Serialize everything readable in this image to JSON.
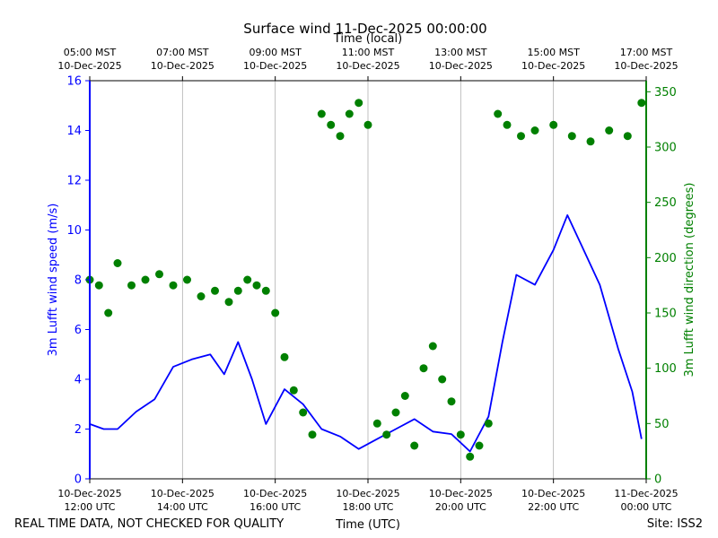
{
  "chart_data": {
    "type": "line+scatter",
    "title": "Surface wind 11-Dec-2025 00:00:00",
    "top_axis": {
      "label": "Time (local)",
      "ticks": [
        {
          "line1": "05:00 MST",
          "line2": "10-Dec-2025"
        },
        {
          "line1": "07:00 MST",
          "line2": "10-Dec-2025"
        },
        {
          "line1": "09:00 MST",
          "line2": "10-Dec-2025"
        },
        {
          "line1": "11:00 MST",
          "line2": "10-Dec-2025"
        },
        {
          "line1": "13:00 MST",
          "line2": "10-Dec-2025"
        },
        {
          "line1": "15:00 MST",
          "line2": "10-Dec-2025"
        },
        {
          "line1": "17:00 MST",
          "line2": "10-Dec-2025"
        }
      ]
    },
    "bottom_axis": {
      "label": "Time (UTC)",
      "range_hours": [
        12,
        24
      ],
      "ticks": [
        {
          "hour": 12,
          "line1": "10-Dec-2025",
          "line2": "12:00 UTC"
        },
        {
          "hour": 14,
          "line1": "10-Dec-2025",
          "line2": "14:00 UTC"
        },
        {
          "hour": 16,
          "line1": "10-Dec-2025",
          "line2": "16:00 UTC"
        },
        {
          "hour": 18,
          "line1": "10-Dec-2025",
          "line2": "18:00 UTC"
        },
        {
          "hour": 20,
          "line1": "10-Dec-2025",
          "line2": "20:00 UTC"
        },
        {
          "hour": 22,
          "line1": "10-Dec-2025",
          "line2": "22:00 UTC"
        },
        {
          "hour": 24,
          "line1": "11-Dec-2025",
          "line2": "00:00 UTC"
        }
      ]
    },
    "left_axis": {
      "label": "3m Lufft wind speed (m/s)",
      "ylim": [
        0,
        16
      ],
      "ticks": [
        0,
        2,
        4,
        6,
        8,
        10,
        12,
        14,
        16
      ],
      "color": "#0000ff"
    },
    "right_axis": {
      "label": "3m Lufft wind direction (degrees)",
      "ylim": [
        0,
        360
      ],
      "ticks": [
        0,
        50,
        100,
        150,
        200,
        250,
        300,
        350
      ],
      "color": "#008000"
    },
    "series": [
      {
        "name": "3m Lufft wind speed",
        "kind": "line",
        "axis": "left",
        "color": "#0000ff",
        "x": [
          12.0,
          12.3,
          12.6,
          13.0,
          13.4,
          13.8,
          14.2,
          14.6,
          14.9,
          15.2,
          15.5,
          15.8,
          16.2,
          16.6,
          17.0,
          17.4,
          17.8,
          18.2,
          18.6,
          19.0,
          19.4,
          19.8,
          20.2,
          20.6,
          20.9,
          21.2,
          21.6,
          22.0,
          22.3,
          22.6,
          23.0,
          23.4,
          23.7,
          23.9
        ],
        "y": [
          2.2,
          2.0,
          2.0,
          2.7,
          3.2,
          4.5,
          4.8,
          5.0,
          4.2,
          5.5,
          4.0,
          2.2,
          3.6,
          3.0,
          2.0,
          1.7,
          1.2,
          1.6,
          2.0,
          2.4,
          1.9,
          1.8,
          1.1,
          2.5,
          5.5,
          8.2,
          7.8,
          9.2,
          10.6,
          9.4,
          7.8,
          5.2,
          3.5,
          1.6
        ]
      },
      {
        "name": "3m Lufft wind direction",
        "kind": "scatter",
        "axis": "right",
        "color": "#008000",
        "x": [
          12.0,
          12.2,
          12.4,
          12.6,
          12.9,
          13.2,
          13.5,
          13.8,
          14.1,
          14.4,
          14.7,
          15.0,
          15.2,
          15.4,
          15.6,
          15.8,
          16.0,
          16.2,
          16.4,
          16.6,
          16.8,
          17.0,
          17.2,
          17.4,
          17.6,
          17.8,
          18.0,
          18.2,
          18.4,
          18.6,
          18.8,
          19.0,
          19.2,
          19.4,
          19.6,
          19.8,
          20.0,
          20.2,
          20.4,
          20.6,
          20.8,
          21.0,
          21.3,
          21.6,
          22.0,
          22.4,
          22.8,
          23.2,
          23.6,
          23.9
        ],
        "y": [
          180,
          175,
          150,
          195,
          175,
          180,
          185,
          175,
          180,
          165,
          170,
          160,
          170,
          180,
          175,
          170,
          150,
          110,
          80,
          60,
          40,
          330,
          320,
          310,
          330,
          340,
          320,
          50,
          40,
          60,
          75,
          30,
          100,
          120,
          90,
          70,
          40,
          20,
          30,
          50,
          330,
          320,
          310,
          315,
          320,
          310,
          305,
          315,
          310,
          340
        ]
      }
    ],
    "footer_left": "REAL TIME DATA, NOT CHECKED FOR QUALITY",
    "footer_right": "Site: ISS2",
    "grid": "vertical"
  }
}
